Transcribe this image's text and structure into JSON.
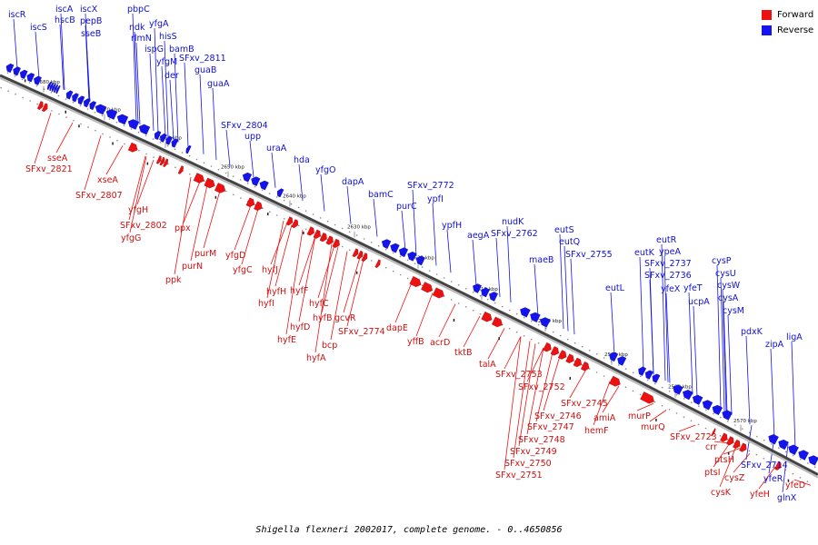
{
  "legend": {
    "forward_label": "Forward",
    "reverse_label": "Reverse",
    "forward_color": "#ee1111",
    "reverse_color": "#1414ee"
  },
  "caption": "Shigella flexneri 2002017, complete genome. - 0..4650856",
  "scale_labels": [
    "2680 kbp",
    "2670 kbp",
    "2660 kbp",
    "2650 kbp",
    "2640 kbp",
    "2630 kbp",
    "2620 kbp",
    "2610 kbp",
    "2600 kbp",
    "2590 kbp",
    "2580 kbp",
    "2570 kbp"
  ],
  "reverse_genes": [
    "iscR",
    "iscS",
    "iscA",
    "hscB",
    "iscX",
    "pepB",
    "sseB",
    "pbpC",
    "ndk",
    "yfgA",
    "rlmN",
    "hisS",
    "ispG",
    "bamB",
    "yfgM",
    "SFxv_2811",
    "der",
    "guaB",
    "guaA",
    "SFxv_2804",
    "upp",
    "uraA",
    "hda",
    "yfgO",
    "dapA",
    "bamC",
    "SFxv_2772",
    "purC",
    "ypfI",
    "ypfH",
    "aegA",
    "nudK",
    "SFxv_2762",
    "eutS",
    "eutQ",
    "maeB",
    "SFxv_2755",
    "eutL",
    "eutR",
    "eutK",
    "ypeA",
    "SFxv_2737",
    "SFxv_2736",
    "yfeX",
    "yfeT",
    "ucpA",
    "cysP",
    "cysU",
    "cysW",
    "cysA",
    "cysM",
    "pdxK",
    "zipA",
    "ligA",
    "SFxv_2714",
    "yfeR",
    "glnX"
  ],
  "forward_genes": [
    "sseA",
    "SFxv_2821",
    "xseA",
    "SFxv_2807",
    "yfgH",
    "SFxv_2802",
    "yfgG",
    "ppx",
    "purM",
    "purN",
    "ppk",
    "yfgD",
    "yfgC",
    "hyfJ",
    "hyfH",
    "hyfF",
    "hyfI",
    "hyfC",
    "hyfD",
    "hyfB",
    "gcvR",
    "hyfE",
    "bcp",
    "hyfA",
    "SFxv_2774",
    "dapE",
    "yffB",
    "acrD",
    "tktB",
    "talA",
    "SFxv_2753",
    "SFxv_2752",
    "SFxv_2745",
    "SFxv_2746",
    "SFxv_2747",
    "SFxv_2748",
    "SFxv_2749",
    "SFxv_2750",
    "SFxv_2751",
    "amiA",
    "hemF",
    "murP",
    "murQ",
    "SFxv_2723",
    "crr",
    "ptsH",
    "ptsI",
    "cysZ",
    "cysK",
    "yfeH",
    "yfeD"
  ]
}
